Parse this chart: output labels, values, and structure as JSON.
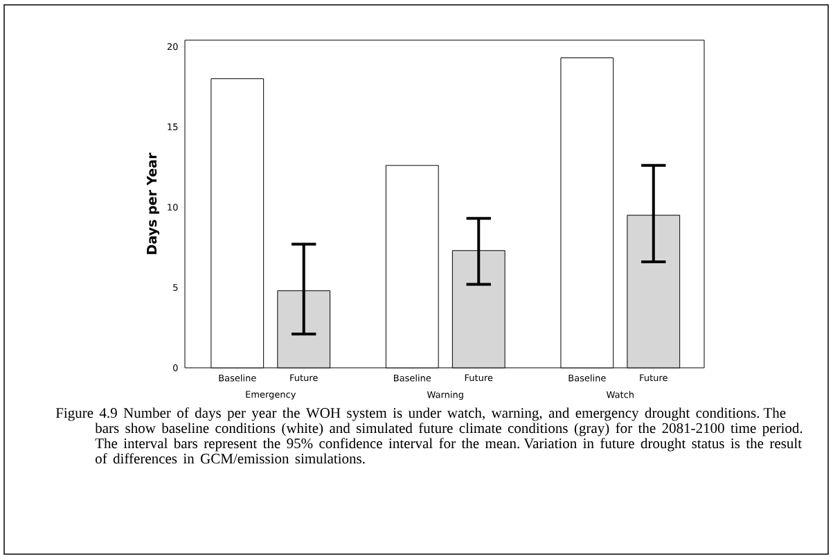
{
  "chart_data": {
    "type": "bar",
    "ylabel": "Days per Year",
    "categories": [
      "Emergency",
      "Warning",
      "Watch"
    ],
    "series": [
      {
        "name": "Baseline",
        "color": "#ffffff",
        "values": [
          18.0,
          12.6,
          19.3
        ]
      },
      {
        "name": "Future",
        "color": "#d6d6d6",
        "values": [
          4.8,
          7.3,
          9.5
        ],
        "errors": [
          [
            2.1,
            7.7
          ],
          [
            5.2,
            9.3
          ],
          [
            6.6,
            12.6
          ]
        ]
      }
    ],
    "ylim": [
      0,
      20.4
    ],
    "yticks": [
      0,
      5,
      10,
      15,
      20
    ],
    "annotations": [
      "Figure 4.9 Number of days per year the WOH system is under watch, warning, and emergency drought conditions. The bars show baseline conditions (white) and simulated future climate conditions (gray) for the 2081-2100 time period. The interval bars represent the 95% confidence interval for the mean. Variation in future drought status is the result of differences in GCM/emission simulations."
    ]
  }
}
